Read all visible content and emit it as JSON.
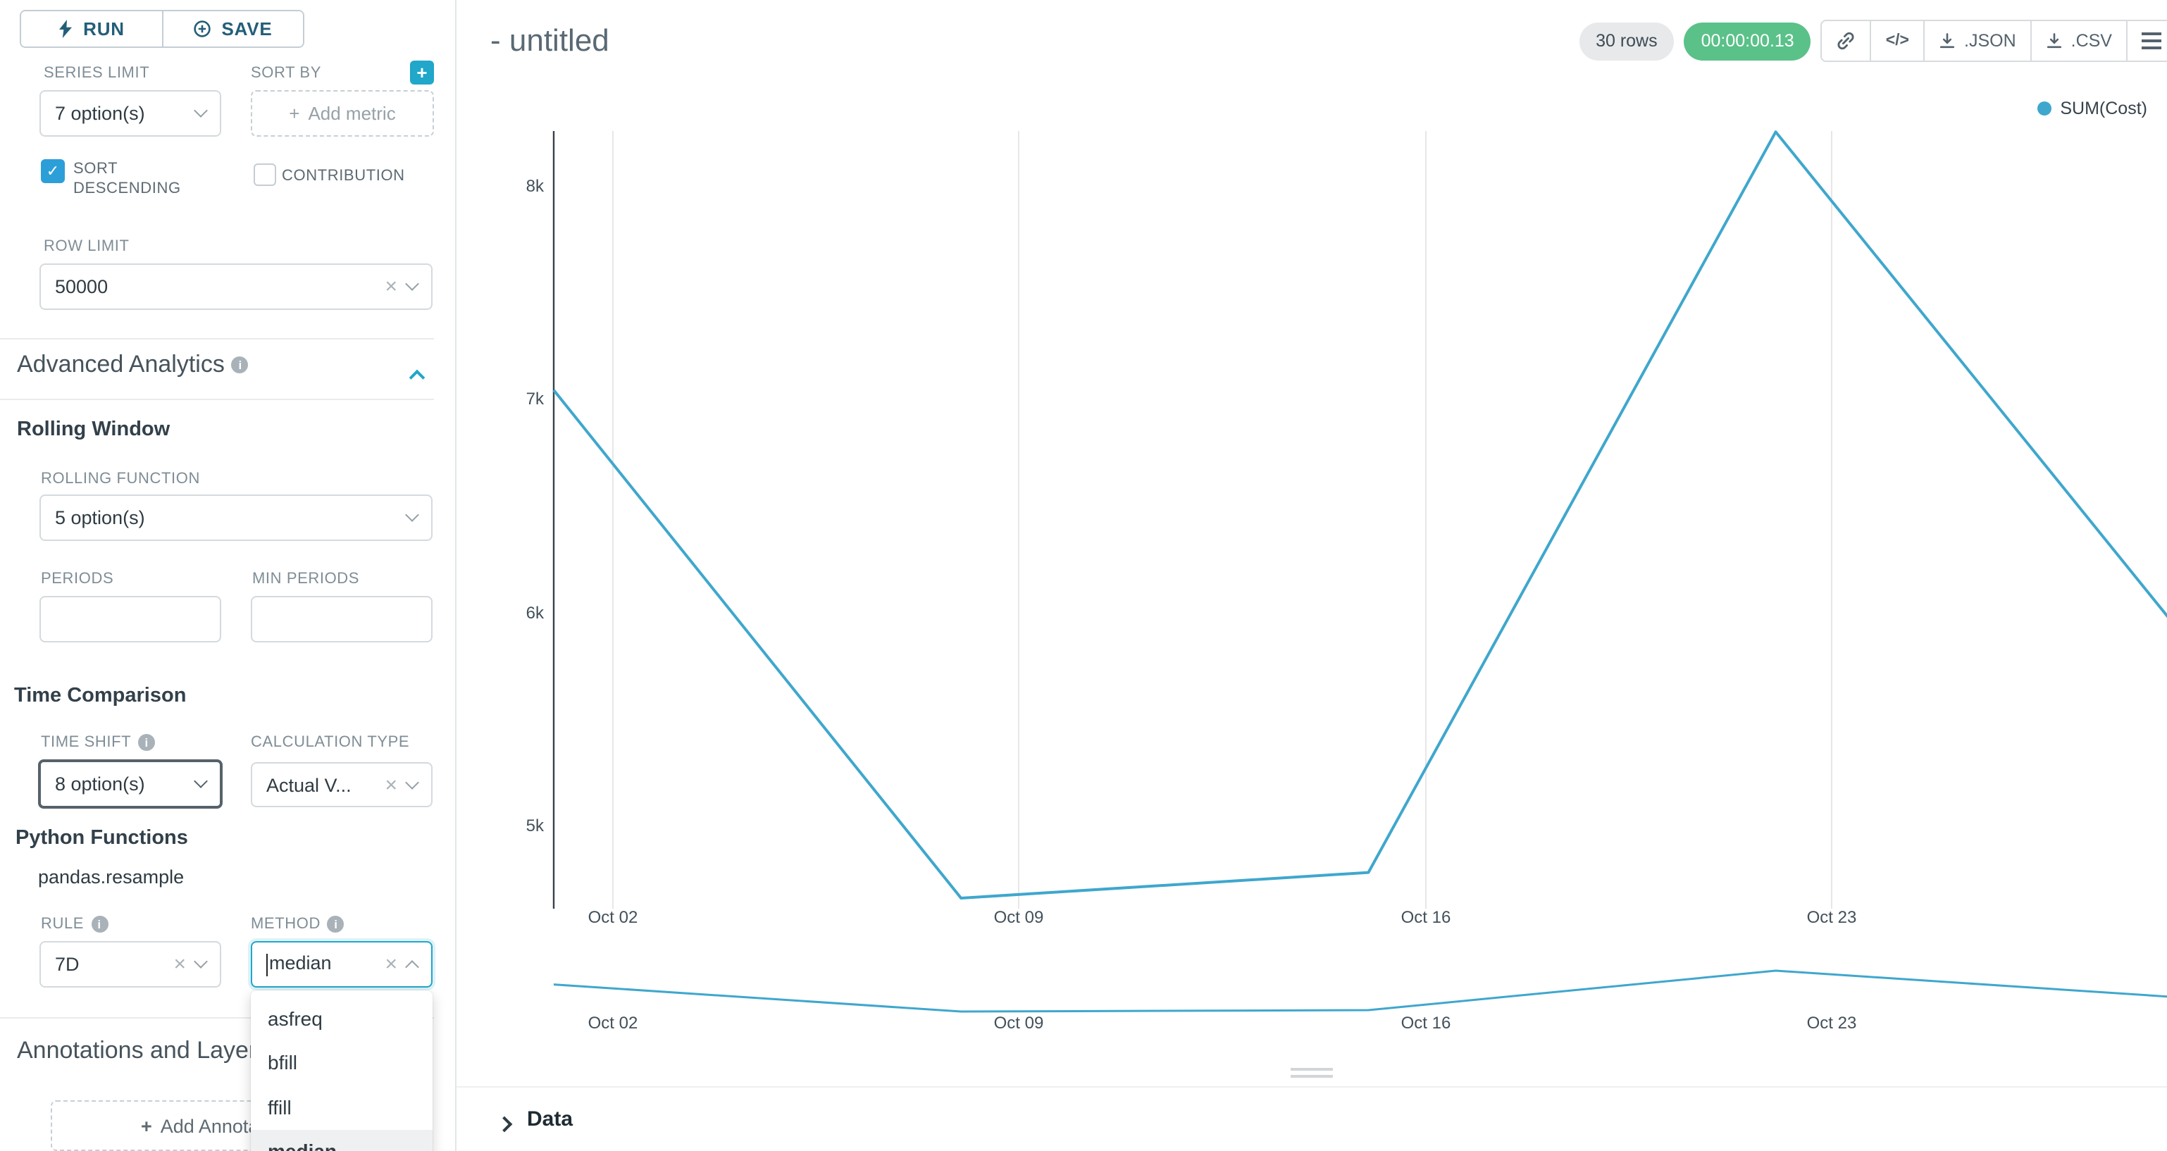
{
  "colors": {
    "primary": "#20a7c9",
    "line": "#3fa7cd",
    "success_badge": "#5ac189",
    "checkbox": "#2d9fd8"
  },
  "sidebar": {
    "run_label": "RUN",
    "save_label": "SAVE",
    "series_limit": {
      "label": "SERIES LIMIT",
      "value": "7 option(s)"
    },
    "sort_by": {
      "label": "SORT BY",
      "placeholder": "Add metric"
    },
    "sort_descending_label": "SORT DESCENDING",
    "contribution_label": "CONTRIBUTION",
    "row_limit": {
      "label": "ROW LIMIT",
      "value": "50000"
    },
    "advanced_analytics_title": "Advanced Analytics",
    "rolling_window": {
      "title": "Rolling Window",
      "rolling_function_label": "ROLLING FUNCTION",
      "rolling_function_value": "5 option(s)",
      "periods_label": "PERIODS",
      "min_periods_label": "MIN PERIODS"
    },
    "time_comparison": {
      "title": "Time Comparison",
      "time_shift_label": "TIME SHIFT",
      "time_shift_value": "8 option(s)",
      "calculation_type_label": "CALCULATION TYPE",
      "calculation_type_value": "Actual V..."
    },
    "python_functions": {
      "title": "Python Functions",
      "subtitle": "pandas.resample",
      "rule_label": "RULE",
      "rule_value": "7D",
      "method_label": "METHOD",
      "method_value": "median",
      "method_options": [
        "asfreq",
        "bfill",
        "ffill",
        "median"
      ],
      "method_selected": "median"
    },
    "annotations_title": "Annotations and Layers",
    "add_annotation_label": "Add Annotation Layer",
    "add_annotation_plus": "+"
  },
  "header": {
    "title": "- untitled",
    "rows_badge": "30 rows",
    "timer": "00:00:00.13",
    "json_label": ".JSON",
    "csv_label": ".CSV"
  },
  "chart_data": {
    "type": "line",
    "title": "",
    "legend": [
      "SUM(Cost)"
    ],
    "legend_position": "top-right",
    "color": "#3fa7cd",
    "series": [
      {
        "name": "SUM(Cost)",
        "x": [
          "Oct 01",
          "Oct 08",
          "Oct 15",
          "Oct 22",
          "Oct 29"
        ],
        "x_days_from_start": [
          0,
          7,
          14,
          21,
          28
        ],
        "values": [
          7050,
          4670,
          4790,
          8260,
          5900
        ]
      }
    ],
    "x_tick_labels": [
      "Oct 02",
      "Oct 09",
      "Oct 16",
      "Oct 23"
    ],
    "y_tick_labels": [
      "8k",
      "7k",
      "6k",
      "5k"
    ],
    "ylim": [
      4500,
      8400
    ],
    "grid": "vertical",
    "has_preview_minichart": true
  },
  "data_panel": {
    "title": "Data"
  }
}
